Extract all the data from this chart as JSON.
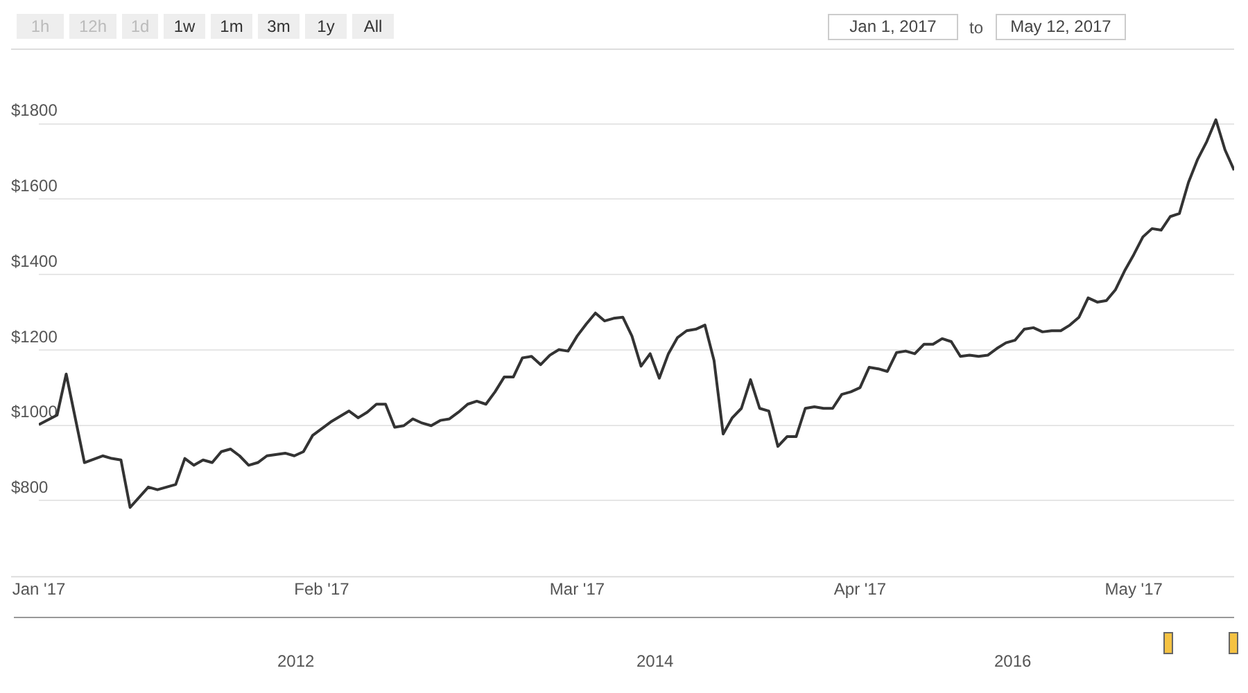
{
  "chart_data": {
    "type": "line",
    "x": [
      "2017-01-01",
      "2017-01-03",
      "2017-01-04",
      "2017-01-06",
      "2017-01-08",
      "2017-01-09",
      "2017-01-10",
      "2017-01-11",
      "2017-01-13",
      "2017-01-14",
      "2017-01-16",
      "2017-01-17",
      "2017-01-18",
      "2017-01-19",
      "2017-01-20",
      "2017-01-21",
      "2017-01-22",
      "2017-01-23",
      "2017-01-24",
      "2017-01-25",
      "2017-01-26",
      "2017-01-28",
      "2017-01-29",
      "2017-01-30",
      "2017-01-31",
      "2017-02-02",
      "2017-02-04",
      "2017-02-05",
      "2017-02-06",
      "2017-02-07",
      "2017-02-08",
      "2017-02-09",
      "2017-02-10",
      "2017-02-11",
      "2017-02-12",
      "2017-02-13",
      "2017-02-14",
      "2017-02-15",
      "2017-02-16",
      "2017-02-17",
      "2017-02-18",
      "2017-02-19",
      "2017-02-20",
      "2017-02-21",
      "2017-02-22",
      "2017-02-23",
      "2017-02-24",
      "2017-02-25",
      "2017-02-26",
      "2017-02-27",
      "2017-02-28",
      "2017-03-01",
      "2017-03-02",
      "2017-03-03",
      "2017-03-04",
      "2017-03-05",
      "2017-03-06",
      "2017-03-07",
      "2017-03-08",
      "2017-03-09",
      "2017-03-10",
      "2017-03-11",
      "2017-03-12",
      "2017-03-13",
      "2017-03-14",
      "2017-03-15",
      "2017-03-16",
      "2017-03-17",
      "2017-03-18",
      "2017-03-19",
      "2017-03-20",
      "2017-03-21",
      "2017-03-22",
      "2017-03-23",
      "2017-03-24",
      "2017-03-25",
      "2017-03-26",
      "2017-03-27",
      "2017-03-28",
      "2017-03-29",
      "2017-03-30",
      "2017-03-31",
      "2017-04-01",
      "2017-04-02",
      "2017-04-03",
      "2017-04-04",
      "2017-04-05",
      "2017-04-06",
      "2017-04-07",
      "2017-04-08",
      "2017-04-09",
      "2017-04-10",
      "2017-04-11",
      "2017-04-12",
      "2017-04-13",
      "2017-04-14",
      "2017-04-15",
      "2017-04-16",
      "2017-04-17",
      "2017-04-18",
      "2017-04-19",
      "2017-04-20",
      "2017-04-21",
      "2017-04-22",
      "2017-04-23",
      "2017-04-24",
      "2017-04-25",
      "2017-04-26",
      "2017-04-27",
      "2017-04-28",
      "2017-04-29",
      "2017-04-30",
      "2017-05-01",
      "2017-05-02",
      "2017-05-03",
      "2017-05-04",
      "2017-05-05",
      "2017-05-06",
      "2017-05-07",
      "2017-05-08",
      "2017-05-09",
      "2017-05-10",
      "2017-05-11",
      "2017-05-12"
    ],
    "series": [
      {
        "color": "#333333",
        "values": [
          1002,
          1027,
          1136,
          901,
          919,
          912,
          908,
          782,
          836,
          829,
          843,
          912,
          894,
          908,
          901,
          930,
          937,
          919,
          894,
          901,
          919,
          926,
          919,
          930,
          973,
          1009,
          1038,
          1020,
          1035,
          1056,
          1056,
          995,
          999,
          1017,
          1006,
          999,
          1013,
          1017,
          1035,
          1056,
          1064,
          1056,
          1089,
          1128,
          1128,
          1179,
          1183,
          1161,
          1186,
          1201,
          1197,
          1237,
          1269,
          1298,
          1277,
          1284,
          1287,
          1237,
          1157,
          1190,
          1125,
          1190,
          1233,
          1251,
          1255,
          1266,
          1172,
          977,
          1020,
          1045,
          1121,
          1045,
          1038,
          944,
          970,
          970,
          1045,
          1049,
          1045,
          1045,
          1082,
          1089,
          1100,
          1154,
          1150,
          1143,
          1193,
          1197,
          1190,
          1215,
          1215,
          1230,
          1222,
          1183,
          1186,
          1183,
          1186,
          1204,
          1219,
          1226,
          1255,
          1259,
          1248,
          1251,
          1251,
          1266,
          1287,
          1338,
          1327,
          1331,
          1360,
          1410,
          1453,
          1500,
          1522,
          1518,
          1554,
          1562,
          1645,
          1706,
          1753,
          1811,
          1731,
          1677
        ]
      }
    ],
    "xlim": [
      "2017-01-01",
      "2017-05-12"
    ],
    "xticks": [
      {
        "value": "2017-01-01",
        "label": "Jan '17"
      },
      {
        "value": "2017-02-01",
        "label": "Feb '17"
      },
      {
        "value": "2017-03-01",
        "label": "Mar '17"
      },
      {
        "value": "2017-04-01",
        "label": "Apr '17"
      },
      {
        "value": "2017-05-01",
        "label": "May '17"
      }
    ],
    "ylim": [
      600,
      2000
    ],
    "yticks": [
      {
        "value": 800,
        "label": "$800"
      },
      {
        "value": 1000,
        "label": "$1000"
      },
      {
        "value": 1200,
        "label": "$1200"
      },
      {
        "value": 1400,
        "label": "$1400"
      },
      {
        "value": 1600,
        "label": "$1600"
      },
      {
        "value": 1800,
        "label": "$1800"
      }
    ],
    "grid": "y",
    "legend": false,
    "marker": "none",
    "line_style": "solid",
    "annotations": [
      "1h",
      "12h",
      "1d",
      "1w",
      "1m",
      "3m",
      "1y",
      "All",
      "Jan 1, 2017",
      "to",
      "May 12, 2017",
      "2012",
      "2014",
      "2016"
    ]
  }
}
